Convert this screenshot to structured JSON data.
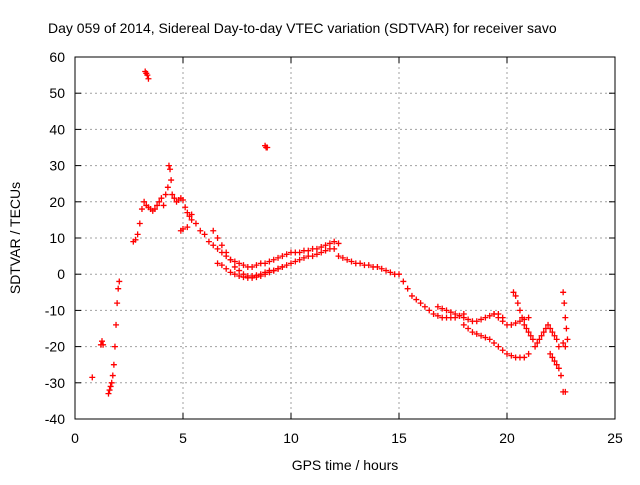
{
  "chart_data": {
    "type": "scatter",
    "title": "Day 059 of 2014, Sidereal Day-to-day VTEC variation (SDTVAR) for receiver savo",
    "xlabel": "GPS time / hours",
    "ylabel": "SDTVAR / TECUs",
    "xlim": [
      0,
      25
    ],
    "ylim": [
      -40,
      60
    ],
    "xticks": [
      0,
      5,
      10,
      15,
      20,
      25
    ],
    "yticks": [
      -40,
      -30,
      -20,
      -10,
      0,
      10,
      20,
      30,
      40,
      50,
      60
    ],
    "grid": true,
    "marker": "+",
    "color": "#ff0000",
    "series": [
      {
        "name": "SDTVAR",
        "x": [
          0.8,
          1.2,
          1.25,
          1.3,
          1.55,
          1.6,
          1.65,
          1.7,
          1.75,
          1.8,
          1.85,
          1.9,
          1.95,
          2.0,
          2.05,
          2.7,
          2.8,
          2.9,
          3.0,
          3.1,
          3.2,
          3.3,
          3.4,
          3.5,
          3.6,
          3.7,
          3.8,
          3.9,
          4.0,
          4.1,
          4.2,
          4.3,
          4.35,
          4.4,
          4.45,
          4.5,
          4.6,
          4.7,
          4.8,
          4.9,
          5.0,
          5.1,
          5.2,
          5.3,
          5.4,
          3.25,
          3.3,
          3.35,
          3.4,
          8.8,
          8.85,
          8.9,
          4.9,
          5.0,
          5.2,
          5.4,
          5.6,
          5.8,
          6.0,
          6.2,
          6.4,
          6.6,
          6.8,
          7.0,
          7.2,
          7.4,
          7.6,
          7.8,
          8.0,
          8.2,
          8.4,
          8.6,
          6.4,
          6.6,
          6.8,
          7.0,
          7.2,
          7.4,
          7.6,
          7.8,
          8.0,
          8.2,
          8.4,
          8.6,
          8.8,
          9.0,
          6.6,
          6.8,
          7.0,
          7.2,
          7.4,
          7.6,
          7.8,
          8.0,
          8.2,
          8.4,
          8.6,
          8.8,
          9.0,
          9.2,
          9.4,
          9.6,
          8.8,
          9.0,
          9.2,
          9.4,
          9.6,
          9.8,
          10.0,
          10.2,
          10.4,
          10.6,
          10.8,
          11.0,
          11.2,
          11.4,
          11.6,
          11.8,
          12.0,
          12.2,
          9.2,
          9.4,
          9.6,
          9.8,
          10.0,
          10.2,
          10.4,
          10.6,
          10.8,
          11.0,
          11.2,
          11.4,
          11.6,
          11.8,
          12.0,
          12.2,
          12.4,
          12.6,
          12.8,
          13.0,
          13.2,
          13.4,
          13.6,
          13.8,
          14.0,
          14.2,
          14.4,
          14.6,
          14.8,
          15.0,
          15.2,
          15.4,
          15.6,
          15.8,
          16.0,
          16.2,
          16.4,
          16.6,
          16.8,
          17.0,
          17.2,
          17.4,
          17.6,
          17.8,
          18.0,
          16.8,
          17.0,
          17.2,
          17.4,
          17.6,
          17.8,
          18.0,
          18.2,
          18.4,
          18.6,
          18.8,
          19.0,
          19.2,
          19.4,
          19.6,
          19.8,
          18.0,
          18.2,
          18.4,
          18.6,
          18.8,
          19.0,
          19.2,
          19.4,
          19.6,
          19.8,
          20.0,
          20.2,
          20.4,
          20.6,
          20.8,
          21.0,
          19.4,
          19.6,
          19.8,
          20.0,
          20.2,
          20.4,
          20.6,
          20.8,
          21.0,
          20.3,
          20.4,
          20.5,
          20.6,
          20.7,
          20.8,
          20.9,
          21.0,
          21.1,
          21.2,
          21.3,
          21.4,
          21.5,
          21.6,
          21.7,
          21.8,
          21.9,
          22.0,
          22.1,
          22.2,
          22.3,
          22.4,
          22.0,
          22.1,
          22.2,
          22.3,
          22.4,
          22.5,
          22.6,
          22.65,
          22.7,
          22.75,
          22.8,
          22.6,
          22.7,
          22.6,
          22.7
        ],
        "y": [
          -28.5,
          -19.5,
          -18.5,
          -19.5,
          -33,
          -32,
          -31,
          -30,
          -28,
          -25,
          -20,
          -14,
          -8,
          -4,
          -2,
          9,
          9.5,
          11,
          14,
          18,
          20,
          19,
          18.5,
          18,
          17.5,
          18,
          19,
          20,
          21,
          19,
          22,
          24,
          30,
          29,
          26,
          22,
          21,
          20,
          20.5,
          21,
          20.5,
          18.5,
          17,
          16,
          16.5,
          56,
          55.5,
          55,
          54,
          35.5,
          35,
          35,
          12,
          12.5,
          13,
          15,
          14,
          12,
          11,
          9,
          8,
          7,
          6,
          5,
          4,
          3.5,
          3,
          2.5,
          2,
          2,
          2.5,
          3,
          12,
          10,
          8,
          6,
          4,
          2,
          1,
          0,
          -0.5,
          -0.5,
          -0.3,
          0,
          0.5,
          1,
          3,
          2.5,
          1.5,
          0.5,
          0,
          -0.5,
          -0.8,
          -1,
          -1,
          -0.8,
          -0.5,
          0,
          0.5,
          1,
          1.5,
          2,
          3,
          3.5,
          4,
          4.5,
          5,
          5.5,
          6,
          6,
          6,
          6.5,
          6.5,
          7,
          7,
          7.5,
          8,
          8.5,
          9,
          8.5,
          1,
          1.5,
          2,
          2.5,
          3,
          3.5,
          4,
          4.5,
          5,
          5,
          5.5,
          6,
          6.5,
          7,
          7,
          5,
          4.5,
          4,
          3.5,
          3,
          3,
          2.5,
          2.5,
          2,
          2,
          1.5,
          1,
          0.5,
          0,
          0,
          -2,
          -4,
          -6,
          -7,
          -8,
          -9,
          -10,
          -11,
          -11.5,
          -12,
          -12,
          -12,
          -12,
          -11.5,
          -11,
          -9,
          -9.5,
          -10,
          -10.5,
          -11,
          -11.5,
          -12,
          -12.5,
          -13,
          -13,
          -12.5,
          -12,
          -11.5,
          -11,
          -11,
          -12,
          -14,
          -15,
          -16,
          -16.5,
          -17,
          -17.5,
          -18,
          -19,
          -20,
          -21,
          -22,
          -22.5,
          -23,
          -23,
          -23,
          -22,
          -11,
          -12,
          -13,
          -14,
          -14,
          -13.5,
          -13,
          -12.5,
          -12,
          -5,
          -6,
          -8,
          -10,
          -12,
          -14,
          -15,
          -16,
          -17,
          -18,
          -20,
          -19,
          -18,
          -17,
          -16,
          -15,
          -14,
          -15,
          -16,
          -17,
          -18,
          -20,
          -22,
          -23,
          -24,
          -25,
          -26,
          -28,
          -5,
          -8,
          -12,
          -15,
          -18,
          -19,
          -20,
          -32.5,
          -32.5
        ]
      }
    ]
  }
}
